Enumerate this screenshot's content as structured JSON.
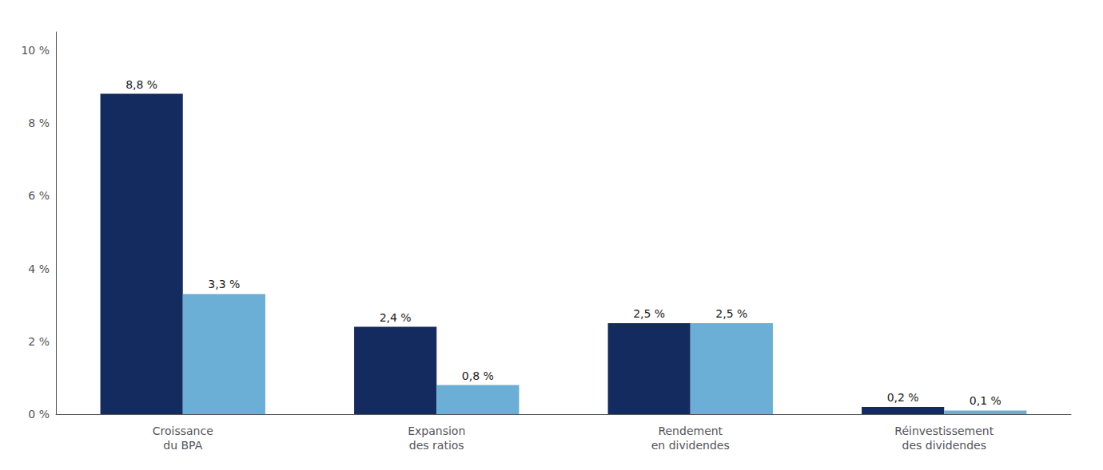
{
  "chart_data": {
    "type": "bar",
    "categories": [
      "Croissance\ndu BPA",
      "Expansion\ndes ratios",
      "Rendement\nen dividendes",
      "Réinvestissement\ndes dividendes"
    ],
    "series": [
      {
        "color": "#132B5E",
        "values": [
          8.8,
          2.4,
          2.5,
          0.2
        ],
        "value_labels": [
          "8,8 %",
          "2,4 %",
          "2,5 %",
          "0,2 %"
        ]
      },
      {
        "color": "#6BAED6",
        "values": [
          3.3,
          0.8,
          2.5,
          0.1
        ],
        "value_labels": [
          "3,3 %",
          "0,8 %",
          "2,5 %",
          "0,1 %"
        ]
      }
    ],
    "ylim": [
      0,
      10.5
    ],
    "yticks": [
      {
        "value": 0,
        "label": "0 %"
      },
      {
        "value": 2,
        "label": "2 %"
      },
      {
        "value": 4,
        "label": "4 %"
      },
      {
        "value": 6,
        "label": "6 %"
      },
      {
        "value": 8,
        "label": "8 %"
      },
      {
        "value": 10,
        "label": "10 %"
      }
    ],
    "grid": false,
    "data_labels": true
  }
}
